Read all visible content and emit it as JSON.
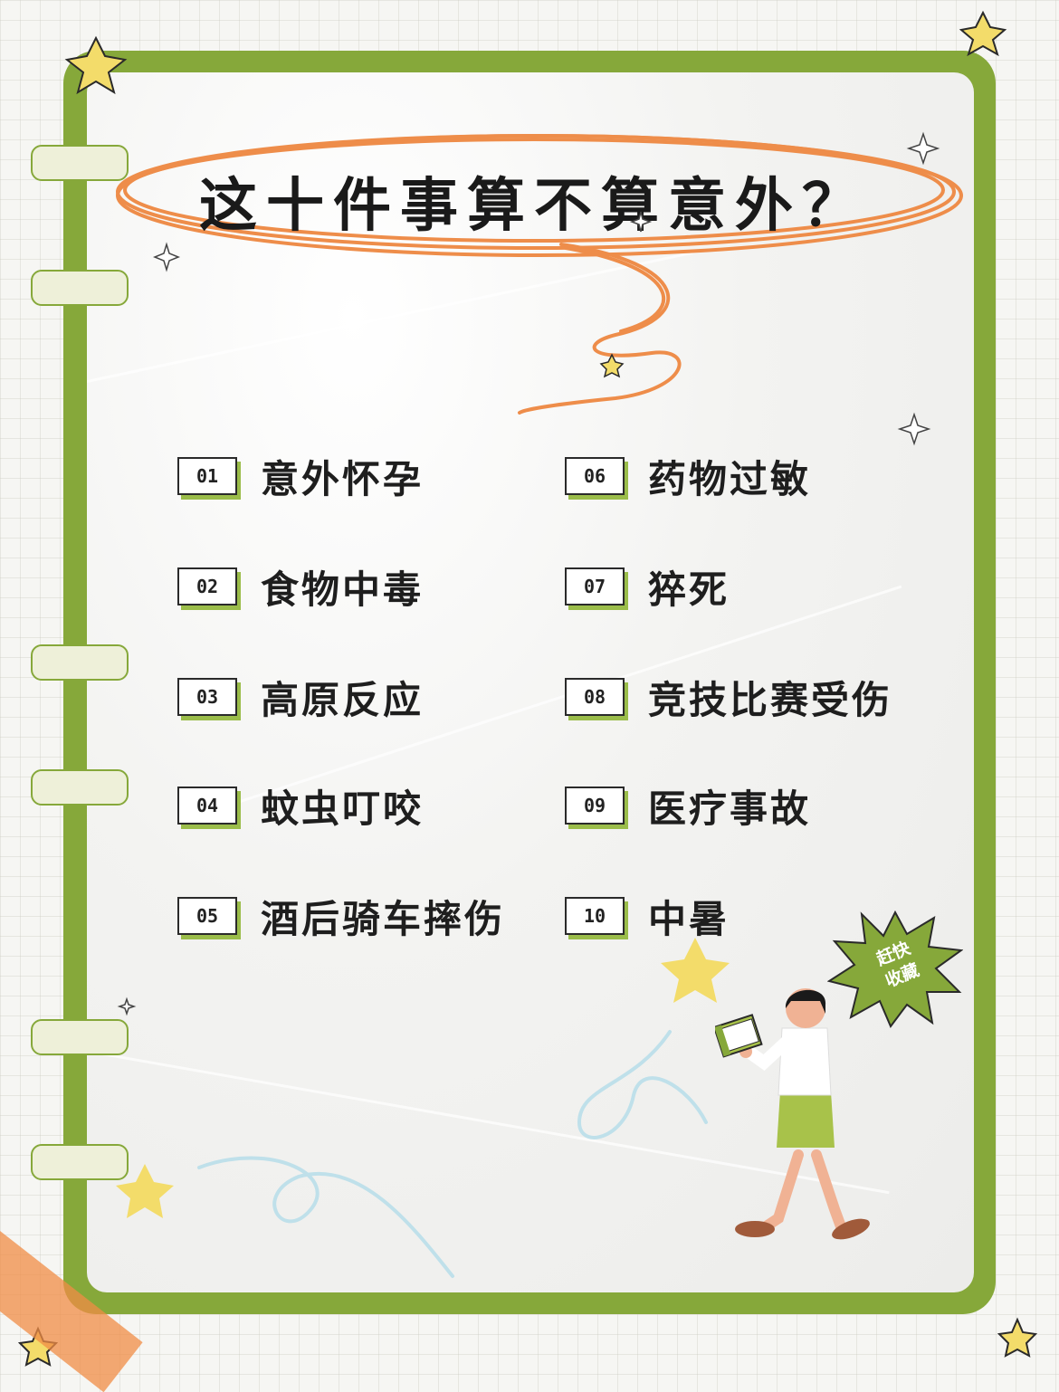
{
  "title": "这十件事算不算意外？",
  "items_left": [
    {
      "number": "01",
      "label": "意外怀孕"
    },
    {
      "number": "02",
      "label": "食物中毒"
    },
    {
      "number": "03",
      "label": "高原反应"
    },
    {
      "number": "04",
      "label": "蚊虫叮咬"
    },
    {
      "number": "05",
      "label": "酒后骑车摔伤"
    }
  ],
  "items_right": [
    {
      "number": "06",
      "label": "药物过敏"
    },
    {
      "number": "07",
      "label": "猝死"
    },
    {
      "number": "08",
      "label": "竞技比赛受伤"
    },
    {
      "number": "09",
      "label": "医疗事故"
    },
    {
      "number": "10",
      "label": "中暑"
    }
  ],
  "badge": {
    "line1": "赶快",
    "line2": "收藏"
  },
  "colors": {
    "frame_green": "#86a83a",
    "badge_shadow": "#9bbd4a",
    "scribble_orange": "#ee8d4a",
    "star_yellow": "#f3dc6a",
    "tape_orange": "#f08c46"
  },
  "icons": [
    "star-icon",
    "sparkle-icon",
    "scribble-swirl",
    "reading-student-illustration",
    "burst-badge"
  ]
}
